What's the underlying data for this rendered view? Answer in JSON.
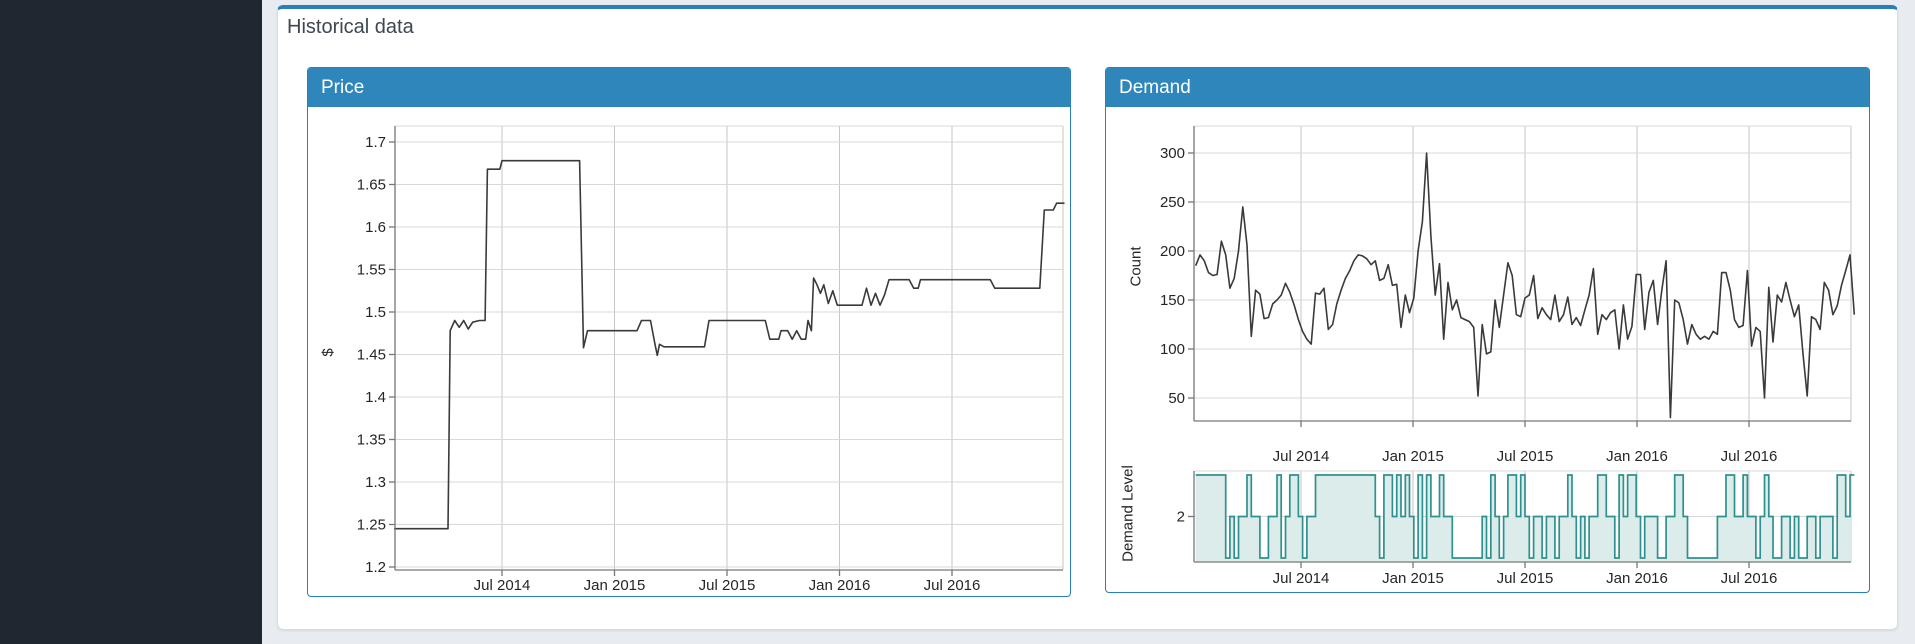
{
  "card": {
    "title": "Historical data"
  },
  "price_panel": {
    "header": "Price",
    "ylabel": "$"
  },
  "demand_panel": {
    "header": "Demand",
    "count_ylabel": "Count",
    "level_ylabel": "Demand Level",
    "level_ytick": "2"
  },
  "colors": {
    "sidebar": "#212730",
    "page_background": "#e8ecf1",
    "card_top_border": "#2980b9",
    "panel_border": "#2980b9",
    "panel_header": "#2e86ba",
    "series_line": "#3a3a3a",
    "level_line": "#2e918f",
    "level_fill": "#dcecea",
    "grid_h": "#d8d8d8",
    "grid_v": "#c6c6c6",
    "axis": "#777777"
  },
  "chart_data": [
    {
      "type": "line",
      "title": "Price",
      "ylabel": "$",
      "xlabel": "",
      "ylim": [
        1.2,
        1.72
      ],
      "xlim": [
        2014.02,
        2017.0
      ],
      "grid": true,
      "yticks": [
        1.7,
        1.65,
        1.6,
        1.55,
        1.5,
        1.45,
        1.4,
        1.35,
        1.3,
        1.25,
        1.2
      ],
      "ytick_labels": [
        "1.7",
        "1.65",
        "1.6",
        "1.55",
        "1.5",
        "1.45",
        "1.4",
        "1.35",
        "1.3",
        "1.25",
        "1.2"
      ],
      "xticks": [
        2014.5,
        2015.0,
        2015.5,
        2016.0,
        2016.5
      ],
      "xtick_labels": [
        "Jul 2014",
        "Jan 2015",
        "Jul 2015",
        "Jan 2016",
        "Jul 2016"
      ],
      "points": [
        [
          2014.02,
          1.245
        ],
        [
          2014.26,
          1.245
        ],
        [
          2014.27,
          1.478
        ],
        [
          2014.29,
          1.49
        ],
        [
          2014.31,
          1.482
        ],
        [
          2014.33,
          1.49
        ],
        [
          2014.35,
          1.48
        ],
        [
          2014.37,
          1.488
        ],
        [
          2014.4,
          1.49
        ],
        [
          2014.425,
          1.49
        ],
        [
          2014.435,
          1.668
        ],
        [
          2014.49,
          1.668
        ],
        [
          2014.5,
          1.678
        ],
        [
          2014.845,
          1.678
        ],
        [
          2014.862,
          1.458
        ],
        [
          2014.88,
          1.478
        ],
        [
          2015.1,
          1.478
        ],
        [
          2015.12,
          1.49
        ],
        [
          2015.16,
          1.49
        ],
        [
          2015.18,
          1.462
        ],
        [
          2015.19,
          1.449
        ],
        [
          2015.2,
          1.462
        ],
        [
          2015.22,
          1.459
        ],
        [
          2015.4,
          1.459
        ],
        [
          2015.42,
          1.49
        ],
        [
          2015.67,
          1.49
        ],
        [
          2015.69,
          1.468
        ],
        [
          2015.73,
          1.468
        ],
        [
          2015.74,
          1.478
        ],
        [
          2015.77,
          1.478
        ],
        [
          2015.79,
          1.468
        ],
        [
          2015.81,
          1.478
        ],
        [
          2015.83,
          1.468
        ],
        [
          2015.85,
          1.468
        ],
        [
          2015.86,
          1.49
        ],
        [
          2015.875,
          1.478
        ],
        [
          2015.885,
          1.54
        ],
        [
          2015.9,
          1.532
        ],
        [
          2015.915,
          1.522
        ],
        [
          2015.93,
          1.532
        ],
        [
          2015.95,
          1.51
        ],
        [
          2015.97,
          1.525
        ],
        [
          2015.99,
          1.508
        ],
        [
          2016.1,
          1.508
        ],
        [
          2016.12,
          1.528
        ],
        [
          2016.14,
          1.508
        ],
        [
          2016.16,
          1.522
        ],
        [
          2016.18,
          1.508
        ],
        [
          2016.2,
          1.52
        ],
        [
          2016.22,
          1.538
        ],
        [
          2016.31,
          1.538
        ],
        [
          2016.33,
          1.528
        ],
        [
          2016.35,
          1.528
        ],
        [
          2016.36,
          1.538
        ],
        [
          2016.67,
          1.538
        ],
        [
          2016.69,
          1.528
        ],
        [
          2016.89,
          1.528
        ],
        [
          2016.91,
          1.62
        ],
        [
          2016.95,
          1.62
        ],
        [
          2016.965,
          1.628
        ],
        [
          2017.0,
          1.628
        ]
      ]
    },
    {
      "type": "line",
      "title": "Demand",
      "ylabel": "Count",
      "xlabel": "",
      "ylim": [
        27,
        327
      ],
      "xlim": [
        2014.03,
        2016.97
      ],
      "grid": true,
      "yticks": [
        300,
        250,
        200,
        150,
        100,
        50
      ],
      "ytick_labels": [
        "300",
        "250",
        "200",
        "150",
        "100",
        "50"
      ],
      "xticks": [
        2014.5,
        2015.0,
        2015.5,
        2016.0,
        2016.5
      ],
      "xtick_labels": [
        "Jul 2014",
        "Jan 2015",
        "Jul 2015",
        "Jan 2016",
        "Jul 2016"
      ],
      "x_start": 2014.03,
      "x_end": 2016.97,
      "values": [
        185,
        196,
        190,
        178,
        175,
        176,
        210,
        196,
        162,
        172,
        200,
        245,
        206,
        113,
        160,
        156,
        131,
        132,
        146,
        150,
        155,
        167,
        158,
        145,
        130,
        118,
        110,
        105,
        157,
        156,
        162,
        120,
        125,
        146,
        160,
        172,
        180,
        190,
        196,
        195,
        192,
        186,
        190,
        170,
        172,
        186,
        165,
        166,
        122,
        155,
        137,
        152,
        200,
        230,
        300,
        215,
        155,
        187,
        110,
        168,
        140,
        150,
        132,
        130,
        128,
        122,
        52,
        125,
        95,
        97,
        150,
        122,
        155,
        188,
        175,
        135,
        133,
        152,
        155,
        175,
        131,
        142,
        135,
        130,
        155,
        128,
        135,
        153,
        125,
        132,
        124,
        140,
        155,
        182,
        115,
        135,
        130,
        137,
        140,
        100,
        145,
        110,
        123,
        176,
        176,
        120,
        158,
        170,
        125,
        160,
        190,
        30,
        150,
        147,
        130,
        105,
        125,
        115,
        110,
        113,
        110,
        118,
        115,
        178,
        178,
        160,
        130,
        122,
        124,
        180,
        103,
        122,
        118,
        50,
        163,
        107,
        155,
        148,
        168,
        150,
        133,
        145,
        95,
        52,
        133,
        130,
        120,
        168,
        160,
        135,
        144,
        165,
        180,
        196,
        135
      ]
    },
    {
      "type": "step",
      "title": "Demand Level",
      "ylabel": "Demand Level",
      "xlabel": "",
      "ylim": [
        0.8,
        3.2
      ],
      "xlim": [
        2014.03,
        2016.97
      ],
      "grid": true,
      "yticks": [
        2
      ],
      "ytick_labels": [
        "2"
      ],
      "xticks": [
        2014.5,
        2015.0,
        2015.5,
        2016.0,
        2016.5
      ],
      "xtick_labels": [
        "Jul 2014",
        "Jan 2015",
        "Jul 2015",
        "Jan 2016",
        "Jul 2016"
      ],
      "x_start": 2014.03,
      "x_end": 2016.97,
      "values": [
        3,
        3,
        3,
        3,
        3,
        3,
        3,
        1,
        2,
        1,
        2,
        2,
        3,
        2,
        2,
        1,
        1,
        2,
        2,
        3,
        1,
        2,
        3,
        3,
        2,
        1,
        2,
        2,
        3,
        3,
        3,
        3,
        3,
        3,
        3,
        3,
        3,
        3,
        3,
        3,
        3,
        3,
        2,
        1,
        3,
        3,
        2,
        3,
        2,
        3,
        2,
        1,
        3,
        1,
        3,
        2,
        2,
        3,
        2,
        2,
        1,
        1,
        1,
        1,
        1,
        1,
        1,
        2,
        1,
        3,
        2,
        1,
        2,
        3,
        3,
        2,
        3,
        2,
        1,
        2,
        2,
        1,
        2,
        2,
        1,
        2,
        2,
        3,
        2,
        1,
        2,
        1,
        2,
        2,
        3,
        3,
        2,
        2,
        1,
        3,
        2,
        3,
        3,
        2,
        1,
        2,
        2,
        2,
        1,
        1,
        2,
        2,
        3,
        3,
        2,
        1,
        1,
        1,
        1,
        1,
        1,
        1,
        2,
        2,
        3,
        3,
        2,
        2,
        3,
        2,
        2,
        1,
        2,
        3,
        2,
        1,
        1,
        2,
        2,
        1,
        2,
        1,
        1,
        2,
        2,
        1,
        2,
        2,
        2,
        1,
        3,
        3,
        2,
        3,
        3
      ]
    }
  ]
}
